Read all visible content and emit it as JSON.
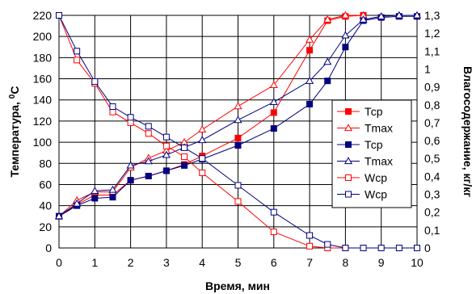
{
  "chart_data": {
    "type": "line",
    "title": "",
    "xlabel": "Время, мин",
    "ylabel_left": "Температура, ",
    "ylabel_left_unit": "0С",
    "ylabel_right": "Влагосодержание, кг/кг",
    "x_ticks": [
      "0",
      "1",
      "2",
      "3",
      "4",
      "5",
      "6",
      "7",
      "8",
      "9",
      "10"
    ],
    "y_left_ticks": [
      "0",
      "20",
      "40",
      "60",
      "80",
      "100",
      "120",
      "140",
      "160",
      "180",
      "200",
      "220"
    ],
    "y_right_ticks": [
      "0",
      "0,1",
      "0,2",
      "0,3",
      "0,4",
      "0,5",
      "0,6",
      "0,7",
      "0,8",
      "0,9",
      "1",
      "1,1",
      "1,2",
      "1,3"
    ],
    "xlim": [
      0,
      10
    ],
    "ylim_left": [
      0,
      220
    ],
    "ylim_right": [
      0,
      1.3
    ],
    "grid": true,
    "legend_position": "right",
    "series": [
      {
        "name": "Тср",
        "axis": "left",
        "color": "#ff0000",
        "marker": "filled-square",
        "x": [
          0,
          0.5,
          1,
          1.5,
          2,
          2.5,
          3,
          3.5,
          4,
          5,
          6,
          7,
          7.5,
          8,
          8.5
        ],
        "y": [
          30,
          41,
          50,
          50,
          64,
          68,
          73,
          79,
          87,
          104,
          128,
          187,
          215,
          219,
          220
        ]
      },
      {
        "name": "Тmax",
        "axis": "left",
        "color": "#ff0000",
        "marker": "open-triangle",
        "x": [
          0,
          0.5,
          1,
          1.5,
          2,
          2.5,
          3,
          3.5,
          4,
          5,
          6,
          7,
          7.5,
          8,
          8.5
        ],
        "y": [
          30,
          45,
          53,
          53,
          76,
          85,
          92,
          100,
          112,
          134,
          154,
          197,
          216,
          220,
          220
        ]
      },
      {
        "name": "Тср",
        "axis": "left",
        "color": "#000080",
        "marker": "filled-square",
        "x": [
          0,
          0.5,
          1,
          1.5,
          2,
          2.5,
          3,
          3.5,
          4,
          5,
          6,
          7,
          7.5,
          8,
          8.5,
          9,
          9.5,
          10
        ],
        "y": [
          30,
          40,
          47,
          48,
          64,
          68,
          73,
          78,
          84,
          97,
          113,
          136,
          158,
          190,
          215,
          218,
          219,
          219
        ]
      },
      {
        "name": "Тmax",
        "axis": "left",
        "color": "#000080",
        "marker": "open-triangle",
        "x": [
          0,
          0.5,
          1,
          1.5,
          2,
          2.5,
          3,
          3.5,
          4,
          5,
          6,
          7,
          7.5,
          8,
          8.5,
          9,
          9.5,
          10
        ],
        "y": [
          30,
          42,
          54,
          55,
          78,
          82,
          88,
          95,
          102,
          121,
          138,
          158,
          176,
          201,
          216,
          219,
          220,
          220
        ]
      },
      {
        "name": "Wср",
        "axis": "right",
        "color": "#ff0000",
        "marker": "open-square",
        "x": [
          0,
          0.5,
          1,
          1.5,
          2,
          2.5,
          3,
          3.5,
          4,
          5,
          6,
          7,
          7.5,
          8
        ],
        "y": [
          1.3,
          1.05,
          0.92,
          0.76,
          0.7,
          0.64,
          0.57,
          0.51,
          0.42,
          0.26,
          0.09,
          0.01,
          0,
          0
        ]
      },
      {
        "name": "Wср",
        "axis": "right",
        "color": "#000080",
        "marker": "open-square",
        "x": [
          0,
          0.5,
          1,
          1.5,
          2,
          2.5,
          3,
          3.5,
          4,
          5,
          6,
          7,
          7.5,
          8,
          8.5,
          9,
          9.5,
          10
        ],
        "y": [
          1.3,
          1.1,
          0.93,
          0.79,
          0.73,
          0.68,
          0.62,
          0.56,
          0.5,
          0.35,
          0.2,
          0.07,
          0.02,
          0,
          0,
          0,
          0,
          0
        ]
      }
    ]
  }
}
